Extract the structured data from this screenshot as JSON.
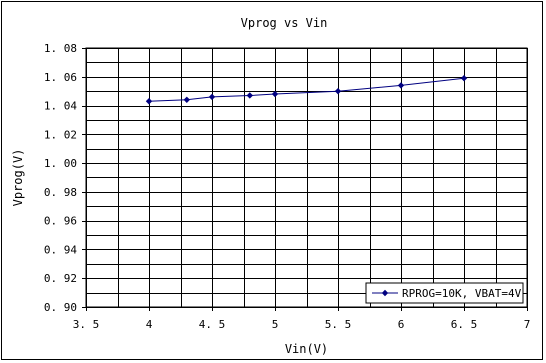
{
  "chart_data": {
    "type": "line",
    "title": "Vprog vs Vin",
    "xlabel": "Vin(V)",
    "ylabel": "Vprog(V)",
    "xlim": [
      3.5,
      7
    ],
    "ylim": [
      0.9,
      1.08
    ],
    "x_ticks": [
      "3.5",
      "4",
      "4.5",
      "5",
      "5.5",
      "6",
      "6.5",
      "7"
    ],
    "y_ticks": [
      "0.90",
      "0.92",
      "0.94",
      "0.96",
      "0.98",
      "1.00",
      "1.02",
      "1.04",
      "1.06",
      "1.08"
    ],
    "grid": true,
    "legend_position": "bottom-right",
    "series": [
      {
        "name": "RPROG=10K, VBAT=4V",
        "color": "#000080",
        "marker": "diamond",
        "x": [
          4.0,
          4.3,
          4.5,
          4.8,
          5.0,
          5.5,
          6.0,
          6.5
        ],
        "y": [
          1.043,
          1.044,
          1.046,
          1.047,
          1.048,
          1.05,
          1.054,
          1.059
        ]
      }
    ]
  }
}
